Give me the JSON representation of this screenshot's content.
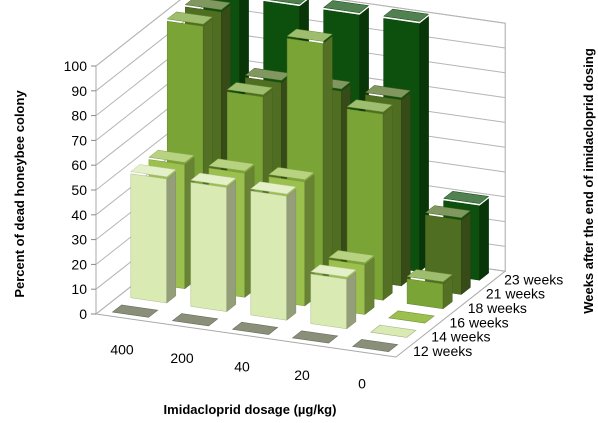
{
  "chart_data": {
    "type": "bar",
    "title": "",
    "xlabel": "Imidacloprid dosage (µg/kg)",
    "ylabel": "Percent of dead honeybee colony",
    "zlabel": "Weeks after the end of imidacloprid dosing",
    "categories": [
      "400",
      "200",
      "40",
      "20",
      "0"
    ],
    "yticks": [
      "0",
      "10",
      "20",
      "30",
      "40",
      "50",
      "60",
      "70",
      "80",
      "90",
      "100"
    ],
    "ylim": [
      0,
      100
    ],
    "grid": true,
    "series": [
      {
        "name": "12 weeks",
        "values": [
          0,
          0,
          0,
          0,
          0
        ],
        "color": "#8a8f7a"
      },
      {
        "name": "14 weeks",
        "values": [
          50,
          50,
          50,
          20,
          0
        ],
        "color": "#d9eab3"
      },
      {
        "name": "16 weeks",
        "values": [
          50,
          50,
          50,
          20,
          0
        ],
        "color": "#9bc04e"
      },
      {
        "name": "18 weeks",
        "values": [
          100,
          75,
          100,
          75,
          10
        ],
        "color": "#7aa436"
      },
      {
        "name": "21 weeks",
        "values": [
          100,
          75,
          75,
          75,
          30
        ],
        "color": "#506e22"
      },
      {
        "name": "23 weeks",
        "values": [
          100,
          100,
          100,
          100,
          30
        ],
        "color": "#0d4f0d"
      }
    ]
  }
}
